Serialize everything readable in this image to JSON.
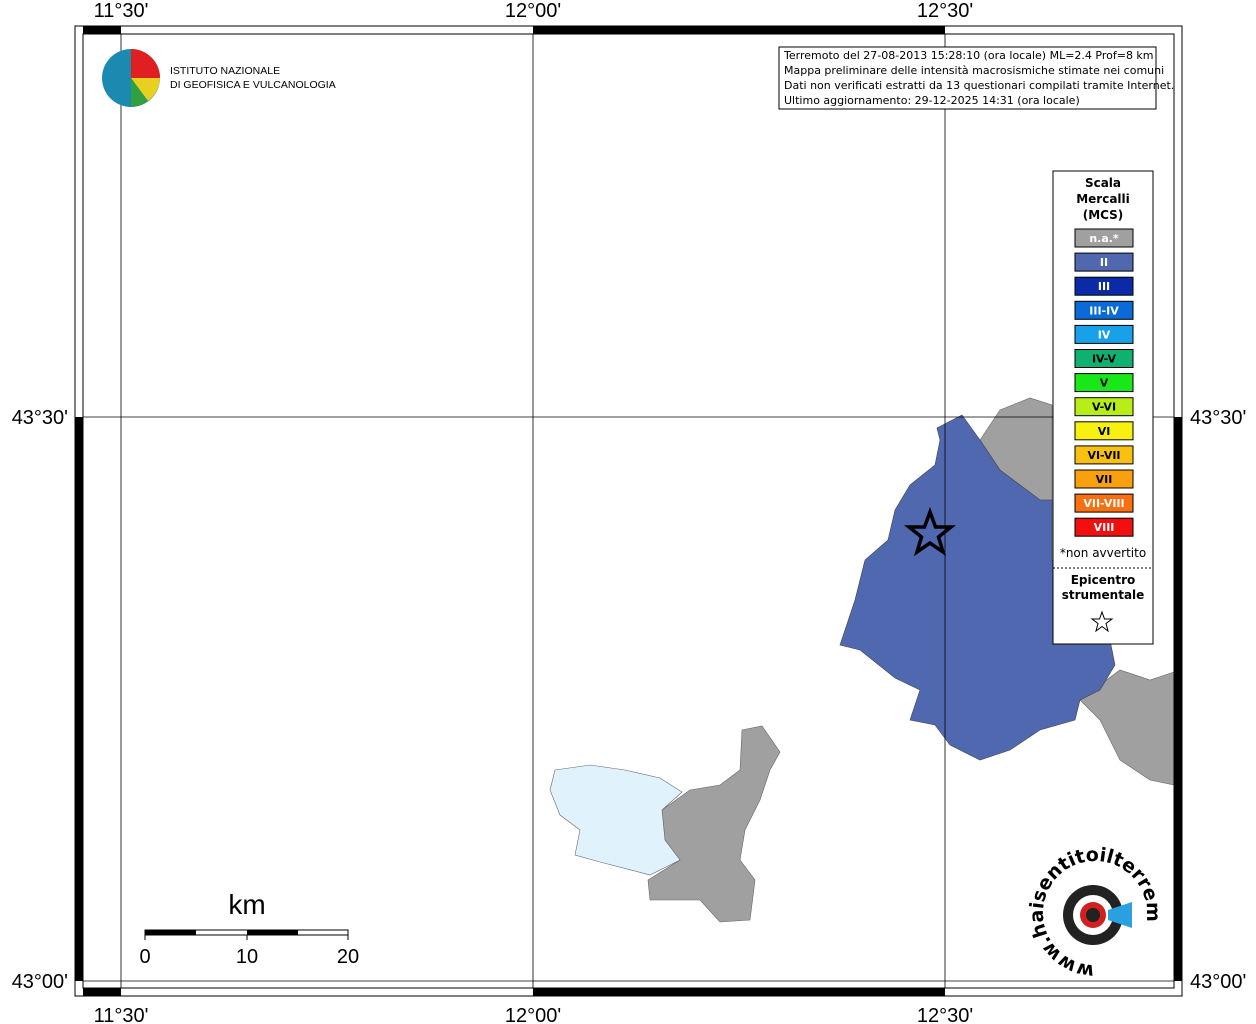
{
  "map": {
    "top_labels": [
      "11°30'",
      "12°00'",
      "12°30'"
    ],
    "bottom_labels": [
      "11°30'",
      "12°00'",
      "12°30'"
    ],
    "left_labels": [
      "43°30'",
      "43°00'"
    ],
    "right_labels": [
      "43°30'",
      "43°00'"
    ],
    "logo": [
      "ISTITUTO NAZIONALE",
      "DI GEOFISICA E VULCANOLOGIA"
    ],
    "info": [
      "Terremoto del 27-08-2013 15:28:10 (ora locale) ML=2.4 Prof=8 km",
      "Mappa preliminare delle intensità macrosismiche stimate nei comuni",
      "Dati non verificati estratti da 13 questionari compilati tramite Internet.",
      "Ultimo aggiornamento: 29-12-2025 14:31 (ora locale)"
    ],
    "legend": {
      "title": [
        "Scala",
        "Mercalli",
        "(MCS)"
      ],
      "items": [
        {
          "label": "n.a.*",
          "color": "#a0a0a0"
        },
        {
          "label": "II",
          "color": "#5068b0"
        },
        {
          "label": "III",
          "color": "#0a2aa8"
        },
        {
          "label": "III-IV",
          "color": "#0a6ad8"
        },
        {
          "label": "IV",
          "color": "#18a0e8"
        },
        {
          "label": "IV-V",
          "color": "#10b070"
        },
        {
          "label": "V",
          "color": "#18e818"
        },
        {
          "label": "V-VI",
          "color": "#b8ee18"
        },
        {
          "label": "VI",
          "color": "#f8f010"
        },
        {
          "label": "VI-VII",
          "color": "#f8c010"
        },
        {
          "label": "VII",
          "color": "#f8a010"
        },
        {
          "label": "VII-VIII",
          "color": "#f87010"
        },
        {
          "label": "VIII",
          "color": "#f01010"
        }
      ],
      "note": "*non avvertito",
      "epicentre": [
        "Epicentro",
        "strumentale"
      ]
    },
    "scale": {
      "unit": "km",
      "labels": [
        "0",
        "10",
        "20"
      ]
    },
    "site": "www.haisentitoilterremoto.it"
  }
}
